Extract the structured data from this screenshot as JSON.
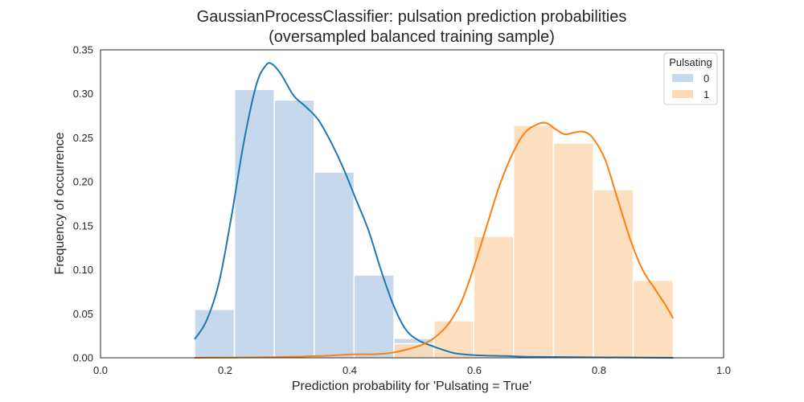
{
  "chart_data": {
    "type": "bar",
    "title_line1": "GaussianProcessClassifier: pulsation prediction probabilities",
    "title_line2": "(oversampled balanced training sample)",
    "xlabel": "Prediction probability for 'Pulsating = True'",
    "ylabel": "Frequency of occurrence",
    "xlim": [
      0.0,
      1.0
    ],
    "ylim": [
      0.0,
      0.35
    ],
    "x_ticks": [
      0.0,
      0.2,
      0.4,
      0.6,
      0.8,
      1.0
    ],
    "x_tick_labels": [
      "0.0",
      "0.2",
      "0.4",
      "0.6",
      "0.8",
      "1.0"
    ],
    "y_ticks": [
      0.0,
      0.05,
      0.1,
      0.15,
      0.2,
      0.25,
      0.3,
      0.35
    ],
    "y_tick_labels": [
      "0.00",
      "0.05",
      "0.10",
      "0.15",
      "0.20",
      "0.25",
      "0.30",
      "0.35"
    ],
    "grid": false,
    "legend": {
      "title": "Pulsating",
      "position": "top-right"
    },
    "series": [
      {
        "name": "0",
        "bar_color": "#c6d9ec",
        "line_color": "#1f77b4",
        "bins": [
          {
            "x0": 0.151,
            "x1": 0.215,
            "y": 0.055
          },
          {
            "x0": 0.215,
            "x1": 0.279,
            "y": 0.305
          },
          {
            "x0": 0.279,
            "x1": 0.343,
            "y": 0.293
          },
          {
            "x0": 0.343,
            "x1": 0.407,
            "y": 0.211
          },
          {
            "x0": 0.407,
            "x1": 0.471,
            "y": 0.094
          },
          {
            "x0": 0.471,
            "x1": 0.535,
            "y": 0.022
          },
          {
            "x0": 0.535,
            "x1": 0.599,
            "y": 0.006
          }
        ],
        "kde": [
          [
            0.151,
            0.021
          ],
          [
            0.17,
            0.042
          ],
          [
            0.19,
            0.085
          ],
          [
            0.21,
            0.16
          ],
          [
            0.23,
            0.245
          ],
          [
            0.25,
            0.31
          ],
          [
            0.265,
            0.332
          ],
          [
            0.275,
            0.334
          ],
          [
            0.29,
            0.322
          ],
          [
            0.31,
            0.298
          ],
          [
            0.33,
            0.285
          ],
          [
            0.35,
            0.27
          ],
          [
            0.37,
            0.245
          ],
          [
            0.39,
            0.215
          ],
          [
            0.41,
            0.18
          ],
          [
            0.43,
            0.145
          ],
          [
            0.45,
            0.1
          ],
          [
            0.47,
            0.06
          ],
          [
            0.49,
            0.032
          ],
          [
            0.51,
            0.02
          ],
          [
            0.53,
            0.014
          ],
          [
            0.55,
            0.009
          ],
          [
            0.57,
            0.005
          ],
          [
            0.6,
            0.003
          ],
          [
            0.65,
            0.002
          ],
          [
            0.7,
            0.001
          ],
          [
            0.8,
            0.0005
          ],
          [
            0.919,
            0.0
          ]
        ]
      },
      {
        "name": "1",
        "bar_color": "#fdd9b5",
        "line_color": "#ff7f0e",
        "bins": [
          {
            "x0": 0.471,
            "x1": 0.535,
            "y": 0.016
          },
          {
            "x0": 0.535,
            "x1": 0.599,
            "y": 0.042
          },
          {
            "x0": 0.599,
            "x1": 0.663,
            "y": 0.138
          },
          {
            "x0": 0.663,
            "x1": 0.727,
            "y": 0.264
          },
          {
            "x0": 0.727,
            "x1": 0.791,
            "y": 0.244
          },
          {
            "x0": 0.791,
            "x1": 0.855,
            "y": 0.191
          },
          {
            "x0": 0.855,
            "x1": 0.919,
            "y": 0.088
          }
        ],
        "kde": [
          [
            0.151,
            0.0
          ],
          [
            0.25,
            0.0005
          ],
          [
            0.3,
            0.001
          ],
          [
            0.35,
            0.002
          ],
          [
            0.38,
            0.003
          ],
          [
            0.41,
            0.004
          ],
          [
            0.44,
            0.004
          ],
          [
            0.47,
            0.006
          ],
          [
            0.5,
            0.011
          ],
          [
            0.52,
            0.016
          ],
          [
            0.54,
            0.025
          ],
          [
            0.56,
            0.04
          ],
          [
            0.58,
            0.065
          ],
          [
            0.6,
            0.105
          ],
          [
            0.62,
            0.15
          ],
          [
            0.64,
            0.195
          ],
          [
            0.66,
            0.23
          ],
          [
            0.68,
            0.255
          ],
          [
            0.7,
            0.265
          ],
          [
            0.715,
            0.267
          ],
          [
            0.73,
            0.26
          ],
          [
            0.745,
            0.254
          ],
          [
            0.76,
            0.256
          ],
          [
            0.775,
            0.257
          ],
          [
            0.79,
            0.25
          ],
          [
            0.81,
            0.225
          ],
          [
            0.83,
            0.18
          ],
          [
            0.85,
            0.135
          ],
          [
            0.87,
            0.1
          ],
          [
            0.89,
            0.078
          ],
          [
            0.905,
            0.062
          ],
          [
            0.919,
            0.045
          ]
        ]
      }
    ]
  }
}
